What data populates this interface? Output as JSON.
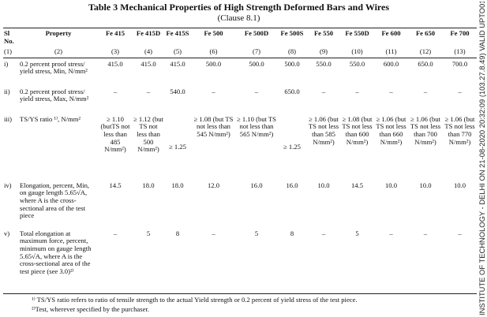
{
  "title": "Table 3 Mechanical Properties of High Strength Deformed Bars and Wires",
  "clause": "(Clause 8.1)",
  "columns": [
    {
      "head": "Sl No.",
      "num": "(1)"
    },
    {
      "head": "Property",
      "num": "(2)"
    },
    {
      "head": "Fe 415",
      "num": "(3)"
    },
    {
      "head": "Fe 415D",
      "num": "(4)"
    },
    {
      "head": "Fe 415S",
      "num": "(5)"
    },
    {
      "head": "Fe 500",
      "num": "(6)"
    },
    {
      "head": "Fe 500D",
      "num": "(7)"
    },
    {
      "head": "Fe 500S",
      "num": "(8)"
    },
    {
      "head": "Fe 550",
      "num": "(9)"
    },
    {
      "head": "Fe 550D",
      "num": "(10)"
    },
    {
      "head": "Fe 600",
      "num": "(11)"
    },
    {
      "head": "Fe 650",
      "num": "(12)"
    },
    {
      "head": "Fe 700",
      "num": "(13)"
    }
  ],
  "rows": [
    {
      "sl": "i)",
      "property": "0.2 percent proof stress/ yield stress, Min, N/mm²",
      "values": [
        "415.0",
        "415.0",
        "415.0",
        "500.0",
        "500.0",
        "500.0",
        "550.0",
        "550.0",
        "600.0",
        "650.0",
        "700.0"
      ]
    },
    {
      "sl": "ii)",
      "property": "0.2 percent proof stress/ yield stress, Max, N/mm²",
      "values": [
        "–",
        "–",
        "540.0",
        "–",
        "–",
        "650.0",
        "–",
        "–",
        "–",
        "–",
        "–"
      ]
    },
    {
      "sl": "iii)",
      "property": "TS/YS ratio ¹⁾, N/mm²",
      "values": [
        "≥ 1.10 (butTS not less than 485 N/mm²)",
        "≥ 1.12 (but TS not less than 500 N/mm²)",
        "≥ 1.25",
        "≥ 1.08 (but TS not less than 545 N/mm²)",
        "≥ 1.10 (but TS not less than 565 N/mm²)",
        "≥ 1.25",
        "≥ 1.06 (but TS not less than 585 N/mm²)",
        "≥ 1.08 (but TS not less than 600 N/mm²)",
        "≥ 1.06 (but TS not less than 660 N/mm²)",
        "≥ 1.06 (but TS not less than 700 N/mm²)",
        "≥ 1.06 (but TS not less than 770 N/mm²)"
      ]
    },
    {
      "sl": "iv)",
      "property": "Elongation, percent, Min, on gauge length 5.65√A, where A is the cross-sectional area of the test piece",
      "values": [
        "14.5",
        "18.0",
        "18.0",
        "12.0",
        "16.0",
        "16.0",
        "10.0",
        "14.5",
        "10.0",
        "10.0",
        "10.0"
      ]
    },
    {
      "sl": "v)",
      "property": "Total elongation at maximum force, percent, minimum on gauge length 5.65√A, where A is the cross-sectional area of the test piece (see 3.0)²⁾",
      "values": [
        "–",
        "5",
        "8",
        "–",
        "5",
        "8",
        "–",
        "5",
        "–",
        "–",
        "–"
      ]
    }
  ],
  "footnotes": [
    "¹⁾ TS/YS ratio refers to ratio of tensile strength to the actual Yield strength or 0.2 percent of yield stress of the test piece.",
    "²⁾Test, wherever specified by the purchaser."
  ],
  "watermark": "INSTITUTE OF TECHNOLOGY - DELHI ON 21-08-2020 20:32:09 (103.27.8.49) VALID UPTO01-"
}
